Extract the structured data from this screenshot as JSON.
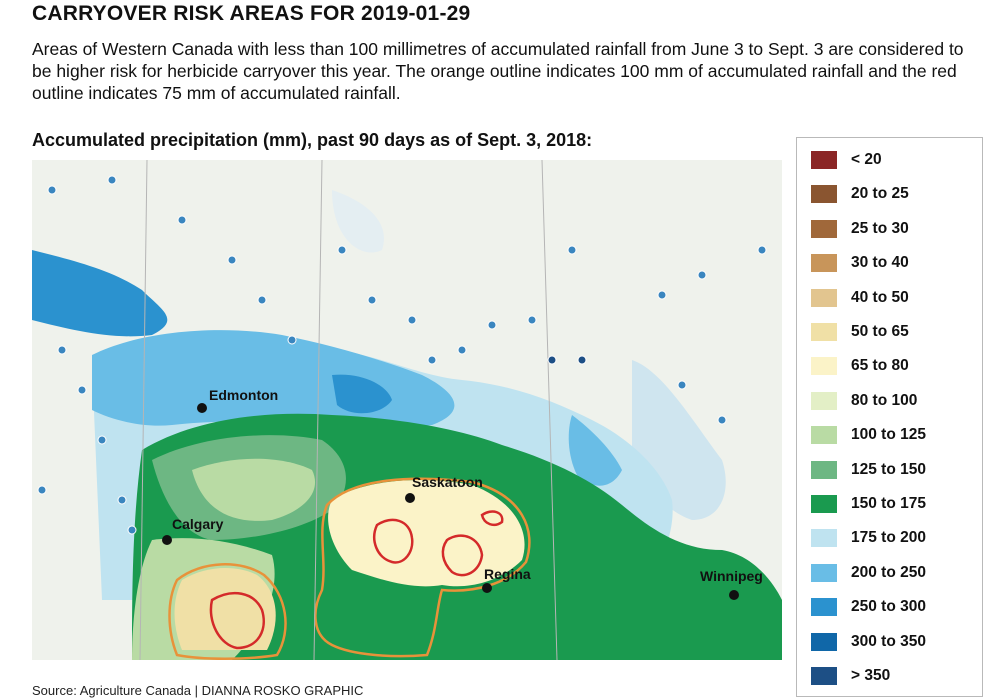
{
  "title": "CARRYOVER RISK AREAS FOR 2019-01-29",
  "description": "Areas of Western Canada with less than 100 millimetres of accumulated rainfall from June 3 to Sept. 3 are considered to be higher risk for herbicide carryover this year. The orange outline indicates 100 mm of accumulated rainfall and the red outline indicates 75 mm of accumulated rainfall.",
  "subtitle": "Accumulated precipitation (mm), past 90 days as of Sept. 3, 2018:",
  "source": "Source: Agriculture Canada  |  DIANNA ROSKO GRAPHIC",
  "cities": [
    {
      "name": "Edmonton"
    },
    {
      "name": "Saskatoon"
    },
    {
      "name": "Calgary"
    },
    {
      "name": "Regina"
    },
    {
      "name": "Winnipeg"
    }
  ],
  "legend": [
    {
      "label": "< 20",
      "color": "#8b2525"
    },
    {
      "label": "20 to 25",
      "color": "#8a5530"
    },
    {
      "label": "25 to 30",
      "color": "#a0683a"
    },
    {
      "label": "30 to 40",
      "color": "#c8955a"
    },
    {
      "label": "40 to 50",
      "color": "#e2c58f"
    },
    {
      "label": "50 to 65",
      "color": "#f0e0a6"
    },
    {
      "label": "65 to 80",
      "color": "#fbf3c8"
    },
    {
      "label": "80 to 100",
      "color": "#e3efc6"
    },
    {
      "label": "100 to 125",
      "color": "#b9dba4"
    },
    {
      "label": "125 to 150",
      "color": "#6db783"
    },
    {
      "label": "150 to 175",
      "color": "#1a9a4f"
    },
    {
      "label": "175 to 200",
      "color": "#bfe3f0"
    },
    {
      "label": "200 to 250",
      "color": "#69bde6"
    },
    {
      "label": "250 to 300",
      "color": "#2b92cf"
    },
    {
      "label": "300 to 350",
      "color": "#1067a8"
    },
    {
      "label": "> 350",
      "color": "#1d4f85"
    }
  ],
  "outline_colors": {
    "orange_100mm": "#e8923a",
    "red_75mm": "#d42a2a"
  }
}
